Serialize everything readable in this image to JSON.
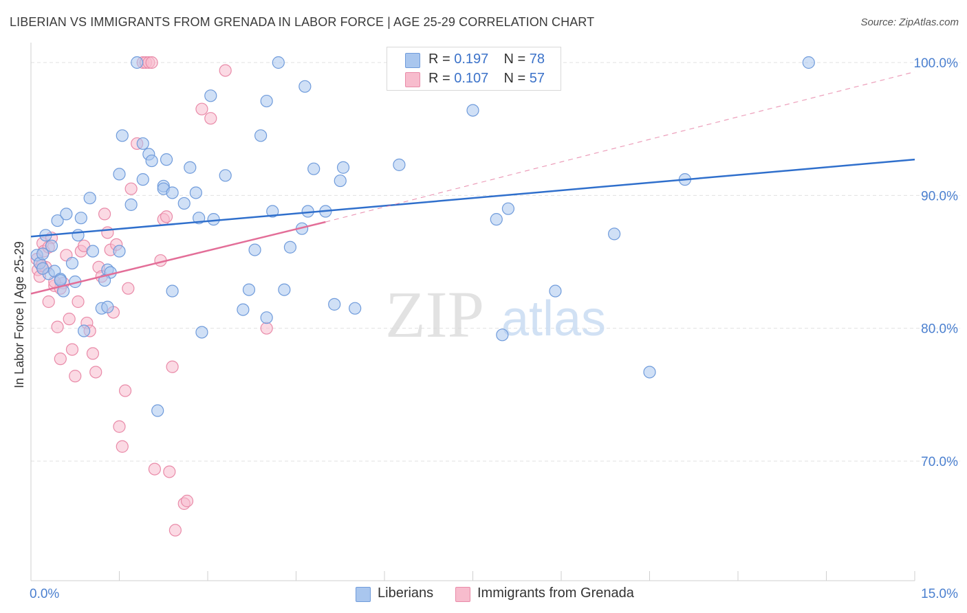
{
  "title": "LIBERIAN VS IMMIGRANTS FROM GRENADA IN LABOR FORCE | AGE 25-29 CORRELATION CHART",
  "source": "Source: ZipAtlas.com",
  "watermark": {
    "zip": "ZIP",
    "atlas": "atlas"
  },
  "legend": {
    "r_label": "R =",
    "n_label": "N =",
    "rows": [
      {
        "r": "0.197",
        "n": "78"
      },
      {
        "r": "0.107",
        "n": "57"
      }
    ]
  },
  "colors": {
    "blue_fill": "#a9c6ee",
    "blue_stroke": "#6f9bdb",
    "blue_line": "#2f6fcc",
    "pink_fill": "#f7bccd",
    "pink_stroke": "#e98aa8",
    "pink_line": "#e36e98",
    "axis_text": "#4a7fcf",
    "grid": "#e0e0e0"
  },
  "chart_data": {
    "type": "scatter",
    "title": "LIBERIAN VS IMMIGRANTS FROM GRENADA IN LABOR FORCE | AGE 25-29 CORRELATION CHART",
    "xlabel": "",
    "ylabel": "In Labor Force | Age 25-29",
    "xlim": [
      0,
      15
    ],
    "ylim": [
      61,
      101.5
    ],
    "x_tick_labels": [
      {
        "value": 0,
        "label": "0.0%"
      },
      {
        "value": 15,
        "label": "15.0%"
      }
    ],
    "y_tick_labels": [
      {
        "value": 100,
        "label": "100.0%"
      },
      {
        "value": 90,
        "label": "90.0%"
      },
      {
        "value": 80,
        "label": "80.0%"
      },
      {
        "value": 70,
        "label": "70.0%"
      }
    ],
    "grid": true,
    "legend_position": "top-center",
    "series": [
      {
        "name": "Liberians",
        "trend": {
          "x": [
            0,
            15
          ],
          "y": [
            86.9,
            92.7
          ]
        },
        "points": [
          [
            0.1,
            85.5
          ],
          [
            0.15,
            84.9
          ],
          [
            0.2,
            85.6
          ],
          [
            0.25,
            87.0
          ],
          [
            0.3,
            84.1
          ],
          [
            0.35,
            86.2
          ],
          [
            0.4,
            84.3
          ],
          [
            0.45,
            88.1
          ],
          [
            0.5,
            83.7
          ],
          [
            0.55,
            82.8
          ],
          [
            0.6,
            88.6
          ],
          [
            0.7,
            84.9
          ],
          [
            0.8,
            87.0
          ],
          [
            0.85,
            88.3
          ],
          [
            1.0,
            89.8
          ],
          [
            1.05,
            85.8
          ],
          [
            1.2,
            81.5
          ],
          [
            1.3,
            84.4
          ],
          [
            1.35,
            84.2
          ],
          [
            1.5,
            85.8
          ],
          [
            1.5,
            91.6
          ],
          [
            1.55,
            94.5
          ],
          [
            1.7,
            89.3
          ],
          [
            1.8,
            100.0
          ],
          [
            1.9,
            91.2
          ],
          [
            1.9,
            93.9
          ],
          [
            2.0,
            93.1
          ],
          [
            2.05,
            92.6
          ],
          [
            2.15,
            73.8
          ],
          [
            2.25,
            90.7
          ],
          [
            2.25,
            90.5
          ],
          [
            2.3,
            92.7
          ],
          [
            2.4,
            90.2
          ],
          [
            2.4,
            82.8
          ],
          [
            2.6,
            89.4
          ],
          [
            2.7,
            92.1
          ],
          [
            2.8,
            90.2
          ],
          [
            2.85,
            88.3
          ],
          [
            2.9,
            79.7
          ],
          [
            3.05,
            97.5
          ],
          [
            3.1,
            88.2
          ],
          [
            3.3,
            91.5
          ],
          [
            3.6,
            81.4
          ],
          [
            3.7,
            82.9
          ],
          [
            3.8,
            85.9
          ],
          [
            3.9,
            94.5
          ],
          [
            4.0,
            80.8
          ],
          [
            4.0,
            97.1
          ],
          [
            4.1,
            88.8
          ],
          [
            4.2,
            100.0
          ],
          [
            4.3,
            82.9
          ],
          [
            4.4,
            86.1
          ],
          [
            4.6,
            87.5
          ],
          [
            4.65,
            98.2
          ],
          [
            4.8,
            92.0
          ],
          [
            5.0,
            88.8
          ],
          [
            5.15,
            81.8
          ],
          [
            5.25,
            91.1
          ],
          [
            5.3,
            92.1
          ],
          [
            5.5,
            81.5
          ],
          [
            6.25,
            92.3
          ],
          [
            6.7,
            100.0
          ],
          [
            7.5,
            96.4
          ],
          [
            7.9,
            88.2
          ],
          [
            8.0,
            79.5
          ],
          [
            8.1,
            89.0
          ],
          [
            8.9,
            82.8
          ],
          [
            9.9,
            87.1
          ],
          [
            10.5,
            76.7
          ],
          [
            11.1,
            91.2
          ],
          [
            13.2,
            100.0
          ],
          [
            0.5,
            83.6
          ],
          [
            0.9,
            79.8
          ],
          [
            1.25,
            83.6
          ],
          [
            1.3,
            81.6
          ],
          [
            4.7,
            88.8
          ],
          [
            0.75,
            83.5
          ],
          [
            0.2,
            84.5
          ]
        ]
      },
      {
        "name": "Immigrants from Grenada",
        "trend": {
          "x": [
            0,
            5
          ],
          "y": [
            82.6,
            88.0
          ]
        },
        "trend_extension": {
          "x": [
            5,
            15
          ],
          "y": [
            88.0,
            99.3
          ]
        },
        "points": [
          [
            0.1,
            85.2
          ],
          [
            0.12,
            84.4
          ],
          [
            0.15,
            83.9
          ],
          [
            0.2,
            86.4
          ],
          [
            0.22,
            85.8
          ],
          [
            0.25,
            84.6
          ],
          [
            0.3,
            82.0
          ],
          [
            0.35,
            86.8
          ],
          [
            0.4,
            83.2
          ],
          [
            0.45,
            80.1
          ],
          [
            0.5,
            77.7
          ],
          [
            0.55,
            83.4
          ],
          [
            0.6,
            85.5
          ],
          [
            0.65,
            80.7
          ],
          [
            0.7,
            78.4
          ],
          [
            0.75,
            76.4
          ],
          [
            0.8,
            82.0
          ],
          [
            0.85,
            85.8
          ],
          [
            0.9,
            86.2
          ],
          [
            0.95,
            80.4
          ],
          [
            1.0,
            79.8
          ],
          [
            1.05,
            78.1
          ],
          [
            1.1,
            76.7
          ],
          [
            1.15,
            84.6
          ],
          [
            1.2,
            83.9
          ],
          [
            1.25,
            88.6
          ],
          [
            1.3,
            87.2
          ],
          [
            1.35,
            85.9
          ],
          [
            1.4,
            81.2
          ],
          [
            1.45,
            86.3
          ],
          [
            1.5,
            72.6
          ],
          [
            1.55,
            71.1
          ],
          [
            1.6,
            75.3
          ],
          [
            1.65,
            83.0
          ],
          [
            1.7,
            90.5
          ],
          [
            1.8,
            93.9
          ],
          [
            1.9,
            100.0
          ],
          [
            1.95,
            100.0
          ],
          [
            2.0,
            100.0
          ],
          [
            2.05,
            100.0
          ],
          [
            2.1,
            69.4
          ],
          [
            2.2,
            85.1
          ],
          [
            2.25,
            88.2
          ],
          [
            2.3,
            88.4
          ],
          [
            2.35,
            69.2
          ],
          [
            2.4,
            77.1
          ],
          [
            2.45,
            64.8
          ],
          [
            2.6,
            66.8
          ],
          [
            2.65,
            67.0
          ],
          [
            2.9,
            96.5
          ],
          [
            3.05,
            95.8
          ],
          [
            3.3,
            99.4
          ],
          [
            4.0,
            80.0
          ],
          [
            0.5,
            83.0
          ],
          [
            0.3,
            86.1
          ],
          [
            0.18,
            84.7
          ],
          [
            0.4,
            83.5
          ]
        ]
      }
    ]
  },
  "bottom_legend": [
    "Liberians",
    "Immigrants from Grenada"
  ]
}
